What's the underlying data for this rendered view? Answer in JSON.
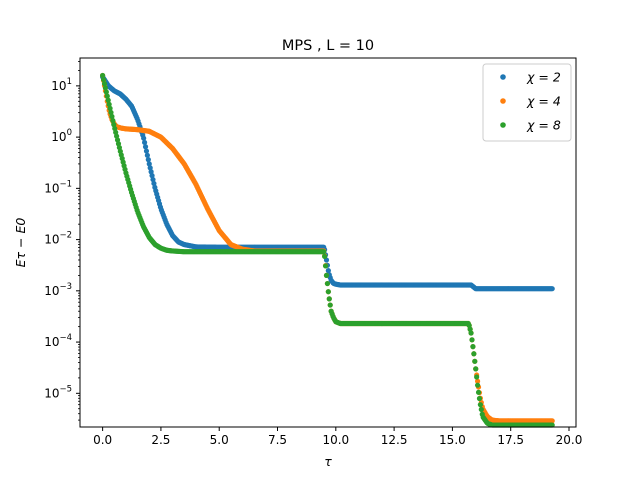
{
  "chart_data": {
    "type": "scatter",
    "title": "MPS , L = 10",
    "xlabel": "τ",
    "ylabel": "Eτ − E0",
    "xlim": [
      -0.97,
      20.3
    ],
    "ylim": [
      2.2e-06,
      35
    ],
    "yscale": "log",
    "x_ticks": [
      0.0,
      2.5,
      5.0,
      7.5,
      10.0,
      12.5,
      15.0,
      17.5,
      20.0
    ],
    "x_tick_labels": [
      "0.0",
      "2.5",
      "5.0",
      "7.5",
      "10.0",
      "12.5",
      "15.0",
      "17.5",
      "20.0"
    ],
    "y_ticks": [
      1e-05,
      0.0001,
      0.001,
      0.01,
      0.1,
      1.0,
      10.0
    ],
    "y_tick_labels": [
      {
        "base": "10",
        "exp": "−5"
      },
      {
        "base": "10",
        "exp": "−4"
      },
      {
        "base": "10",
        "exp": "−3"
      },
      {
        "base": "10",
        "exp": "−2"
      },
      {
        "base": "10",
        "exp": "−1"
      },
      {
        "base": "10",
        "exp": "0"
      },
      {
        "base": "10",
        "exp": "1"
      }
    ],
    "legend": {
      "position": "top-right"
    },
    "grid": false,
    "series": [
      {
        "name": "χ = 2",
        "color": "#1f77b4",
        "x": [
          0,
          0.25,
          0.5,
          0.75,
          1.0,
          1.25,
          1.5,
          1.75,
          2.0,
          2.25,
          2.5,
          2.75,
          3.0,
          3.25,
          3.5,
          4.0,
          5.0,
          6.0,
          7.0,
          8.0,
          9.0,
          9.5,
          9.6,
          9.7,
          9.8,
          9.9,
          10.0,
          10.2,
          10.5,
          11,
          12,
          13,
          14,
          15,
          15.5,
          15.7,
          15.8,
          15.9,
          16.0,
          16.5,
          17,
          18,
          19,
          19.3
        ],
        "y": [
          15,
          10,
          8,
          7,
          5.5,
          4,
          2.2,
          1.0,
          0.3,
          0.1,
          0.04,
          0.02,
          0.012,
          0.009,
          0.008,
          0.0072,
          0.0071,
          0.0071,
          0.0071,
          0.0071,
          0.0071,
          0.0071,
          0.004,
          0.0022,
          0.0016,
          0.0014,
          0.00135,
          0.0013,
          0.0013,
          0.0013,
          0.0013,
          0.0013,
          0.0013,
          0.0013,
          0.0013,
          0.0013,
          0.0013,
          0.0012,
          0.0011,
          0.0011,
          0.0011,
          0.0011,
          0.0011,
          0.0011
        ]
      },
      {
        "name": "χ = 4",
        "color": "#ff7f0e",
        "x": [
          0,
          0.1,
          0.2,
          0.3,
          0.4,
          0.5,
          0.6,
          0.8,
          1.0,
          1.5,
          2.0,
          2.5,
          3.0,
          3.5,
          4.0,
          4.5,
          5.0,
          5.5,
          6.0,
          6.5,
          7.0,
          8.0,
          9.0,
          9.5,
          9.6,
          9.7,
          9.8,
          9.9,
          10.0,
          10.2,
          10.5,
          11,
          12,
          13,
          14,
          15,
          15.7,
          15.8,
          15.9,
          16.0,
          16.1,
          16.2,
          16.3,
          16.5,
          16.7,
          17.0,
          18.0,
          19.0,
          19.3
        ],
        "y": [
          16,
          9,
          5,
          3,
          2.2,
          1.8,
          1.6,
          1.5,
          1.45,
          1.4,
          1.3,
          1.0,
          0.6,
          0.3,
          0.12,
          0.04,
          0.015,
          0.008,
          0.0065,
          0.006,
          0.006,
          0.006,
          0.006,
          0.006,
          0.002,
          0.0008,
          0.0004,
          0.0003,
          0.00025,
          0.00023,
          0.00023,
          0.00023,
          0.00023,
          0.00023,
          0.00023,
          0.00023,
          0.00023,
          0.00015,
          7e-05,
          3e-05,
          1.5e-05,
          8e-06,
          5e-06,
          3.5e-06,
          3e-06,
          2.9e-06,
          2.9e-06,
          2.9e-06,
          2.9e-06
        ]
      },
      {
        "name": "χ = 8",
        "color": "#2ca02c",
        "x": [
          0,
          0.25,
          0.5,
          0.75,
          1.0,
          1.25,
          1.5,
          1.75,
          2.0,
          2.25,
          2.5,
          2.75,
          3.0,
          3.5,
          4.0,
          5.0,
          6.0,
          7.0,
          8.0,
          9.0,
          9.4,
          9.5,
          9.6,
          9.7,
          9.8,
          9.9,
          10.0,
          10.2,
          10.5,
          11,
          12,
          13,
          14,
          15,
          15.7,
          15.8,
          15.9,
          16.0,
          16.1,
          16.2,
          16.3,
          16.5,
          16.7,
          17.0,
          18.0,
          19.0,
          19.3
        ],
        "y": [
          16,
          5,
          1.6,
          0.55,
          0.2,
          0.08,
          0.035,
          0.018,
          0.011,
          0.008,
          0.0068,
          0.0062,
          0.006,
          0.0058,
          0.0058,
          0.0058,
          0.0058,
          0.0058,
          0.0058,
          0.0058,
          0.0058,
          0.0058,
          0.002,
          0.0008,
          0.0004,
          0.0003,
          0.00025,
          0.00023,
          0.00023,
          0.00023,
          0.00023,
          0.00023,
          0.00023,
          0.00023,
          0.00023,
          0.00015,
          7e-05,
          3e-05,
          1.2e-05,
          6e-06,
          3.5e-06,
          2.6e-06,
          2.4e-06,
          2.4e-06,
          2.4e-06,
          2.4e-06,
          2.4e-06
        ]
      }
    ]
  }
}
